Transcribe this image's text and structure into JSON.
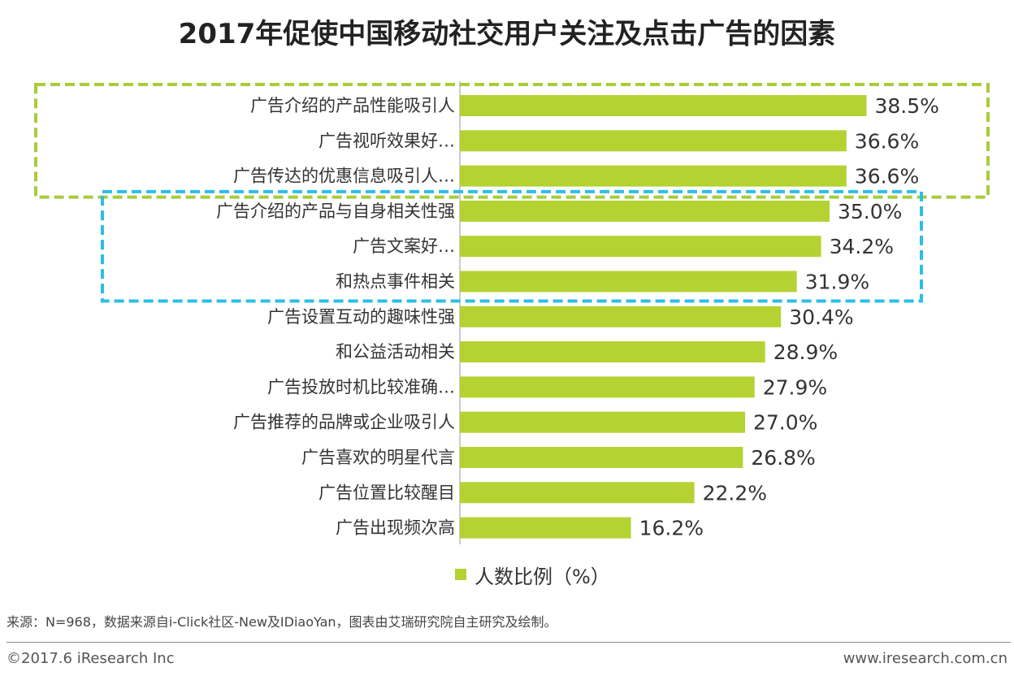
{
  "title": "2017年促使中国移动社交用户关注及点击广告的因素",
  "chart_data": {
    "type": "bar",
    "orientation": "horizontal",
    "categories": [
      "广告介绍的产品性能吸引人",
      "广告视听效果好…",
      "广告传达的优惠信息吸引人…",
      "广告介绍的产品与自身相关性强",
      "广告文案好…",
      "和热点事件相关",
      "广告设置互动的趣味性强",
      "和公益活动相关",
      "广告投放时机比较准确…",
      "广告推荐的品牌或企业吸引人",
      "广告喜欢的明星代言",
      "广告位置比较醒目",
      "广告出现频次高"
    ],
    "values": [
      38.5,
      36.6,
      36.6,
      35.0,
      34.2,
      31.9,
      30.4,
      28.9,
      27.9,
      27.0,
      26.8,
      22.2,
      16.2
    ],
    "value_labels": [
      "38.5%",
      "36.6%",
      "36.6%",
      "35.0%",
      "34.2%",
      "31.9%",
      "30.4%",
      "28.9%",
      "27.9%",
      "27.0%",
      "26.8%",
      "22.2%",
      "16.2%"
    ],
    "xlim": [
      0,
      40
    ],
    "series_name": "人数比例（%）",
    "bar_color": "#b4d232",
    "highlight_groups": [
      {
        "rows": [
          0,
          2
        ],
        "color": "#a8cc3a",
        "style": "dashed"
      },
      {
        "rows": [
          3,
          5
        ],
        "color": "#2bbfe6",
        "style": "dashed"
      }
    ]
  },
  "legend": {
    "label": "人数比例（%）",
    "color": "#b4d232"
  },
  "source_note": "来源：N=968，数据来源自i-Click社区-New及IDiaoYan，图表由艾瑞研究院自主研究及绘制。",
  "footer": {
    "copyright": "©2017.6 iResearch Inc",
    "website": "www.iresearch.com.cn"
  }
}
